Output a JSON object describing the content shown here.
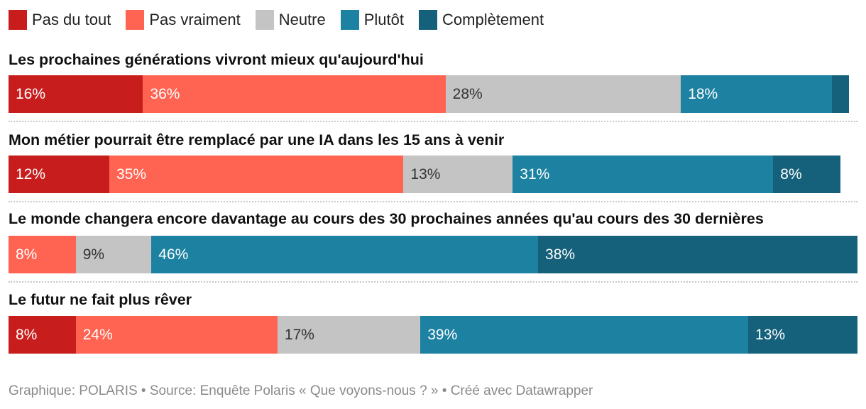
{
  "legend": [
    {
      "label": "Pas du tout",
      "color": "#c71e1d"
    },
    {
      "label": "Pas vraiment",
      "color": "#ff6452"
    },
    {
      "label": "Neutre",
      "color": "#c4c4c4"
    },
    {
      "label": "Plutôt",
      "color": "#1d81a2"
    },
    {
      "label": "Complètement",
      "color": "#15607a"
    }
  ],
  "chart_data": {
    "type": "bar",
    "orientation": "horizontal-stacked-100",
    "categories": [
      "Les prochaines générations vivront mieux qu'aujourd'hui",
      "Mon métier pourrait être remplacé par une IA dans les 15 ans à venir",
      "Le monde changera encore davantage au cours des 30 prochaines années qu'au cours des 30 dernières",
      "Le futur ne fait plus rêver"
    ],
    "series": [
      {
        "name": "Pas du tout",
        "values": [
          16,
          12,
          0,
          8
        ]
      },
      {
        "name": "Pas vraiment",
        "values": [
          36,
          35,
          8,
          24
        ]
      },
      {
        "name": "Neutre",
        "values": [
          28,
          13,
          9,
          17
        ]
      },
      {
        "name": "Plutôt",
        "values": [
          18,
          31,
          46,
          39
        ]
      },
      {
        "name": "Complètement",
        "values": [
          2,
          8,
          38,
          13
        ]
      }
    ],
    "value_labels": [
      [
        "16%",
        "36%",
        "28%",
        "18%",
        ""
      ],
      [
        "12%",
        "35%",
        "13%",
        "31%",
        "8%"
      ],
      [
        "",
        "8%",
        "9%",
        "46%",
        "38%"
      ],
      [
        "8%",
        "24%",
        "17%",
        "39%",
        "13%"
      ]
    ],
    "label_colors": [
      "#ffffff",
      "#ffffff",
      "#333333",
      "#ffffff",
      "#ffffff"
    ],
    "xlim": [
      0,
      100
    ]
  },
  "footer": "Graphique: POLARIS • Source: Enquête Polaris « Que voyons-nous ? » • Créé avec Datawrapper"
}
